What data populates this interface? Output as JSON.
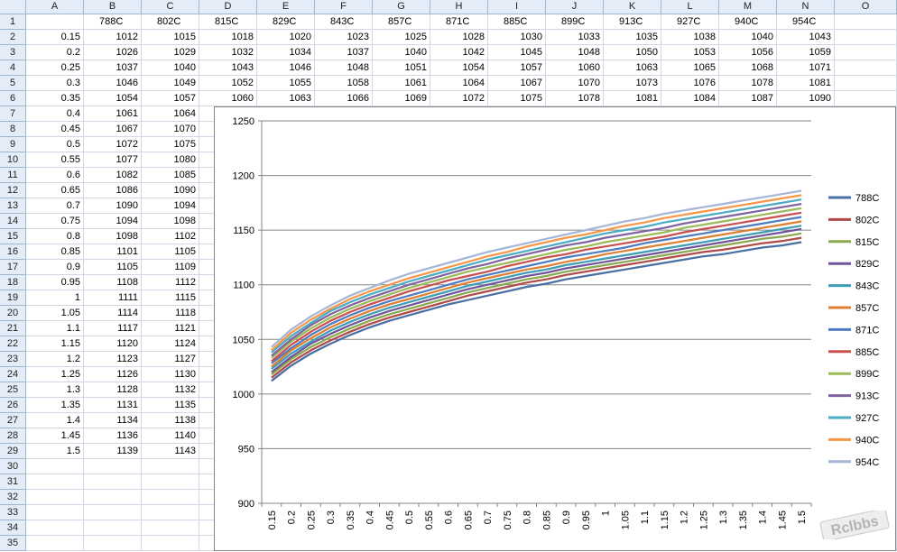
{
  "sheet": {
    "columns": [
      "A",
      "B",
      "C",
      "D",
      "E",
      "F",
      "G",
      "H",
      "I",
      "J",
      "K",
      "L",
      "M",
      "N",
      "O"
    ],
    "row_numbers": [
      1,
      2,
      3,
      4,
      5,
      6,
      7,
      8,
      9,
      10,
      11,
      12,
      13,
      14,
      15,
      16,
      17,
      18,
      19,
      20,
      21,
      22,
      23,
      24,
      25,
      26,
      27,
      28,
      29,
      30,
      31,
      32,
      33,
      34,
      35
    ],
    "header_row": [
      "",
      "788C",
      "802C",
      "815C",
      "829C",
      "843C",
      "857C",
      "871C",
      "885C",
      "899C",
      "913C",
      "927C",
      "940C",
      "954C"
    ],
    "col_a_values": [
      "0.15",
      "0.2",
      "0.25",
      "0.3",
      "0.35",
      "0.4",
      "0.45",
      "0.5",
      "0.55",
      "0.6",
      "0.65",
      "0.7",
      "0.75",
      "0.8",
      "0.85",
      "0.9",
      "0.95",
      "1",
      "1.05",
      "1.1",
      "1.15",
      "1.2",
      "1.25",
      "1.3",
      "1.35",
      "1.4",
      "1.45",
      "1.5"
    ],
    "col_b_values": [
      "1012",
      "1026",
      "1037",
      "1046",
      "1054",
      "1061",
      "1067",
      "1072",
      "1077",
      "1082",
      "1086",
      "1090",
      "1094",
      "1098",
      "1101",
      "1105",
      "1108",
      "1111",
      "1114",
      "1117",
      "1120",
      "1123",
      "1126",
      "1128",
      "1131",
      "1134",
      "1136",
      "1139"
    ],
    "col_c_values": [
      "1015",
      "1029",
      "1040",
      "1049",
      "1057",
      "1064",
      "1070",
      "1075",
      "1080",
      "1085",
      "1090",
      "1094",
      "1098",
      "1102",
      "1105",
      "1109",
      "1112",
      "1115",
      "1118",
      "1121",
      "1124",
      "1127",
      "1130",
      "1132",
      "1135",
      "1138",
      "1140",
      "1143"
    ],
    "rows_2_6": [
      [
        "1018",
        "1020",
        "1023",
        "1025",
        "1028",
        "1030",
        "1033",
        "1035",
        "1038",
        "1040",
        "1043"
      ],
      [
        "1032",
        "1034",
        "1037",
        "1040",
        "1042",
        "1045",
        "1048",
        "1050",
        "1053",
        "1056",
        "1059"
      ],
      [
        "1043",
        "1046",
        "1048",
        "1051",
        "1054",
        "1057",
        "1060",
        "1063",
        "1065",
        "1068",
        "1071"
      ],
      [
        "1052",
        "1055",
        "1058",
        "1061",
        "1064",
        "1067",
        "1070",
        "1073",
        "1076",
        "1078",
        "1081"
      ],
      [
        "1060",
        "1063",
        "1066",
        "1069",
        "1072",
        "1075",
        "1078",
        "1081",
        "1084",
        "1087",
        "1090"
      ]
    ]
  },
  "chart_data": {
    "type": "line",
    "title": "",
    "xlabel": "",
    "ylabel": "",
    "ylim": [
      900,
      1250
    ],
    "yticks": [
      900,
      950,
      1000,
      1050,
      1100,
      1150,
      1200,
      1250
    ],
    "grid": true,
    "legend_position": "right",
    "categories": [
      "0.15",
      "0.2",
      "0.25",
      "0.3",
      "0.35",
      "0.4",
      "0.45",
      "0.5",
      "0.55",
      "0.6",
      "0.65",
      "0.7",
      "0.75",
      "0.8",
      "0.85",
      "0.9",
      "0.95",
      "1",
      "1.05",
      "1.1",
      "1.15",
      "1.2",
      "1.25",
      "1.3",
      "1.35",
      "1.4",
      "1.45",
      "1.5"
    ],
    "series": [
      {
        "name": "788C",
        "color": "#4a6fa5",
        "values": [
          1012,
          1026,
          1037,
          1046,
          1054,
          1061,
          1067,
          1072,
          1077,
          1082,
          1086,
          1090,
          1094,
          1098,
          1101,
          1105,
          1108,
          1111,
          1114,
          1117,
          1120,
          1123,
          1126,
          1128,
          1131,
          1134,
          1136,
          1139
        ]
      },
      {
        "name": "802C",
        "color": "#b04a47",
        "values": [
          1015,
          1029,
          1040,
          1049,
          1057,
          1064,
          1070,
          1075,
          1080,
          1085,
          1090,
          1094,
          1098,
          1102,
          1105,
          1109,
          1112,
          1115,
          1118,
          1121,
          1124,
          1127,
          1130,
          1132,
          1135,
          1138,
          1140,
          1143
        ]
      },
      {
        "name": "815C",
        "color": "#8aa84e",
        "values": [
          1018,
          1032,
          1043,
          1052,
          1060,
          1067,
          1073,
          1078,
          1083,
          1088,
          1093,
          1097,
          1101,
          1105,
          1108,
          1112,
          1115,
          1118,
          1121,
          1124,
          1127,
          1130,
          1133,
          1136,
          1139,
          1142,
          1144,
          1147
        ]
      },
      {
        "name": "829C",
        "color": "#6f569c",
        "values": [
          1020,
          1034,
          1046,
          1055,
          1063,
          1070,
          1076,
          1081,
          1086,
          1091,
          1096,
          1100,
          1104,
          1108,
          1111,
          1115,
          1118,
          1121,
          1124,
          1127,
          1130,
          1133,
          1136,
          1139,
          1142,
          1145,
          1148,
          1151
        ]
      },
      {
        "name": "843C",
        "color": "#3d9cb6",
        "values": [
          1023,
          1037,
          1048,
          1058,
          1066,
          1073,
          1079,
          1084,
          1089,
          1094,
          1099,
          1103,
          1107,
          1111,
          1114,
          1118,
          1121,
          1124,
          1127,
          1130,
          1133,
          1136,
          1139,
          1142,
          1145,
          1148,
          1151,
          1154
        ]
      },
      {
        "name": "857C",
        "color": "#e07f30",
        "values": [
          1025,
          1040,
          1051,
          1061,
          1069,
          1076,
          1082,
          1087,
          1092,
          1097,
          1102,
          1106,
          1110,
          1114,
          1117,
          1121,
          1124,
          1128,
          1131,
          1134,
          1137,
          1140,
          1143,
          1146,
          1149,
          1152,
          1155,
          1158
        ]
      },
      {
        "name": "871C",
        "color": "#4f7cc1",
        "values": [
          1028,
          1042,
          1054,
          1064,
          1072,
          1079,
          1085,
          1090,
          1095,
          1100,
          1105,
          1109,
          1113,
          1117,
          1121,
          1125,
          1128,
          1131,
          1134,
          1138,
          1141,
          1144,
          1147,
          1150,
          1153,
          1156,
          1159,
          1162
        ]
      },
      {
        "name": "885C",
        "color": "#c9504e",
        "values": [
          1030,
          1045,
          1057,
          1067,
          1075,
          1082,
          1088,
          1094,
          1099,
          1104,
          1108,
          1112,
          1117,
          1121,
          1125,
          1128,
          1132,
          1135,
          1138,
          1141,
          1144,
          1148,
          1151,
          1154,
          1157,
          1160,
          1163,
          1166
        ]
      },
      {
        "name": "899C",
        "color": "#9bbb59",
        "values": [
          1033,
          1048,
          1060,
          1070,
          1078,
          1085,
          1091,
          1097,
          1102,
          1107,
          1112,
          1116,
          1120,
          1124,
          1128,
          1132,
          1135,
          1139,
          1142,
          1145,
          1148,
          1152,
          1155,
          1158,
          1161,
          1164,
          1167,
          1170
        ]
      },
      {
        "name": "913C",
        "color": "#8064a2",
        "values": [
          1035,
          1050,
          1063,
          1073,
          1081,
          1088,
          1094,
          1100,
          1105,
          1110,
          1115,
          1119,
          1124,
          1128,
          1132,
          1136,
          1139,
          1143,
          1146,
          1149,
          1152,
          1156,
          1159,
          1162,
          1165,
          1168,
          1171,
          1174
        ]
      },
      {
        "name": "927C",
        "color": "#4bacc6",
        "values": [
          1038,
          1053,
          1065,
          1076,
          1084,
          1091,
          1097,
          1103,
          1108,
          1113,
          1118,
          1123,
          1127,
          1131,
          1135,
          1139,
          1143,
          1147,
          1150,
          1153,
          1157,
          1160,
          1163,
          1166,
          1169,
          1172,
          1175,
          1178
        ]
      },
      {
        "name": "940C",
        "color": "#f79646",
        "values": [
          1040,
          1056,
          1068,
          1078,
          1087,
          1094,
          1100,
          1106,
          1111,
          1116,
          1121,
          1126,
          1130,
          1135,
          1139,
          1143,
          1146,
          1150,
          1154,
          1157,
          1161,
          1164,
          1167,
          1170,
          1173,
          1176,
          1179,
          1182
        ]
      },
      {
        "name": "954C",
        "color": "#a5b6d8",
        "values": [
          1043,
          1059,
          1071,
          1081,
          1090,
          1097,
          1104,
          1110,
          1115,
          1120,
          1125,
          1130,
          1134,
          1138,
          1142,
          1146,
          1150,
          1154,
          1158,
          1161,
          1165,
          1168,
          1171,
          1174,
          1177,
          1180,
          1183,
          1186
        ]
      }
    ]
  },
  "watermark": {
    "text": "Rclbbs"
  },
  "colors": {
    "header_bg": "#e4ecf7",
    "grid_line": "#d0d7e5",
    "chart_grid": "#868686"
  }
}
